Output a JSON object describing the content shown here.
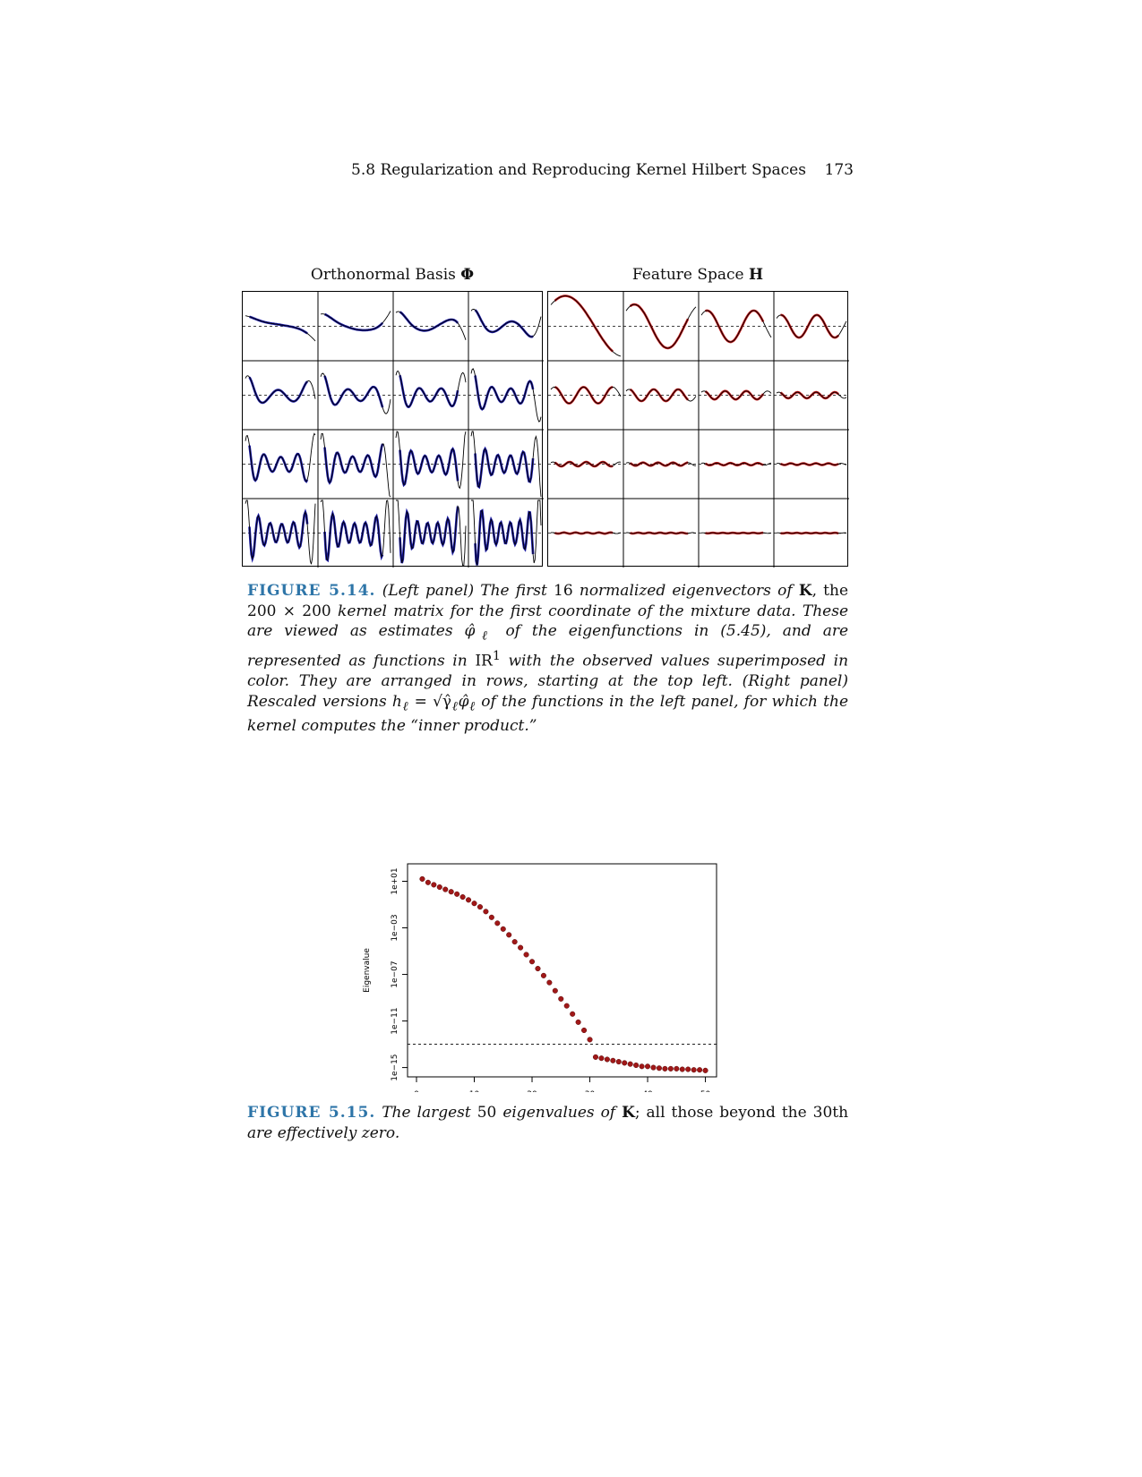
{
  "header": {
    "section_title": "5.8 Regularization and Reproducing Kernel Hilbert Spaces",
    "page_number": "173"
  },
  "figure_514": {
    "left_title": "Orthonormal Basis",
    "left_title_symbol": "Φ",
    "right_title": "Feature Space",
    "right_title_symbol": "H",
    "label": "FIGURE 5.14.",
    "colors": {
      "left_points": "#1a1aa6",
      "right_points": "#c41a1a",
      "curve": "#000000"
    },
    "caption_parts": {
      "p1": "(Left panel) The first",
      "n16": "16",
      "p2": "normalized eigenvectors of",
      "K": "K",
      "p3": ", the",
      "dims": "200 × 200",
      "p4": "kernel matrix for the first coordinate of the mixture data. These are viewed as estimates",
      "phi_hat": "φ̂",
      "ell": "ℓ",
      "p5": "of the eigenfunctions in (5.45), and are represented as functions in",
      "R1": "IR",
      "sup1": "1",
      "p6": "with the observed values superimposed in color. They are arranged in rows, starting at the top left. (Right panel) Rescaled versions",
      "h_ell": "h",
      "eq": "=",
      "sqrt_gamma": "√γ̂",
      "p7": "of the functions in the left panel, for which the kernel computes the “inner product.”"
    }
  },
  "figure_515": {
    "label": "FIGURE 5.15.",
    "caption_parts": {
      "p1": "The largest",
      "n50": "50",
      "p2": "eigenvalues of",
      "K": "K",
      "p3": "; all those beyond the",
      "n30": "30th",
      "p4": "are effectively zero."
    }
  },
  "chart_data": {
    "type": "scatter",
    "title": "",
    "xlabel": "",
    "ylabel": "Eigenvalue",
    "y_scale": "log10",
    "xlim": [
      0,
      51
    ],
    "ylim_log10": [
      -15.8,
      2.5
    ],
    "x_ticks": [
      "0",
      "10",
      "20",
      "30",
      "40",
      "50"
    ],
    "y_ticks": [
      "1e−15",
      "1e−11",
      "1e−07",
      "1e−03",
      "1e+01"
    ],
    "reference_line_y": "1e-13",
    "point_color": "#a01818",
    "series": [
      {
        "x": [
          1,
          2,
          3,
          4,
          5,
          6,
          7,
          8,
          9,
          10,
          11,
          12,
          13,
          14,
          15,
          16,
          17,
          18,
          19,
          20,
          21,
          22,
          23,
          24,
          25,
          26,
          27,
          28,
          29,
          30,
          31,
          32,
          33,
          34,
          35,
          36,
          37,
          38,
          39,
          40,
          41,
          42,
          43,
          44,
          45,
          46,
          47,
          48,
          49,
          50
        ],
        "log10_values": [
          1.2,
          0.9,
          0.7,
          0.5,
          0.3,
          0.1,
          -0.1,
          -0.35,
          -0.6,
          -0.9,
          -1.2,
          -1.6,
          -2.1,
          -2.6,
          -3.1,
          -3.6,
          -4.2,
          -4.7,
          -5.3,
          -5.9,
          -6.5,
          -7.1,
          -7.7,
          -8.4,
          -9.1,
          -9.7,
          -10.4,
          -11.1,
          -11.8,
          -12.6,
          -14.1,
          -14.2,
          -14.3,
          -14.4,
          -14.5,
          -14.6,
          -14.7,
          -14.8,
          -14.9,
          -14.9,
          -15.0,
          -15.05,
          -15.1,
          -15.1,
          -15.1,
          -15.15,
          -15.15,
          -15.2,
          -15.2,
          -15.25
        ]
      }
    ]
  }
}
